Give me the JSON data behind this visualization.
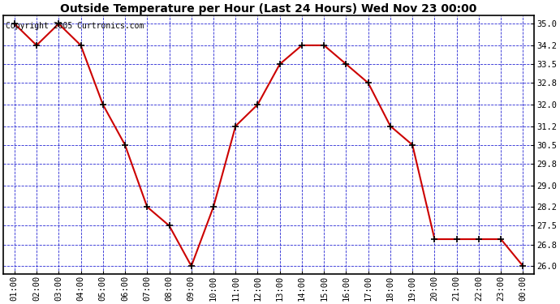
{
  "title": "Outside Temperature per Hour (Last 24 Hours) Wed Nov 23 00:00",
  "copyright": "Copyright 2005 Curtronics.com",
  "x_labels": [
    "01:00",
    "02:00",
    "03:00",
    "04:00",
    "05:00",
    "06:00",
    "07:00",
    "08:00",
    "09:00",
    "10:00",
    "11:00",
    "12:00",
    "13:00",
    "14:00",
    "15:00",
    "16:00",
    "17:00",
    "18:00",
    "19:00",
    "20:00",
    "21:00",
    "22:00",
    "23:00",
    "00:00"
  ],
  "y_values": [
    35.0,
    34.2,
    35.0,
    34.2,
    32.0,
    30.5,
    28.2,
    27.5,
    26.0,
    28.2,
    31.2,
    32.0,
    33.5,
    34.2,
    34.2,
    33.5,
    32.8,
    31.2,
    30.5,
    27.0,
    27.0,
    27.0,
    27.0,
    26.0
  ],
  "y_ticks": [
    26.0,
    26.8,
    27.5,
    28.2,
    29.0,
    29.8,
    30.5,
    31.2,
    32.0,
    32.8,
    33.5,
    34.2,
    35.0
  ],
  "ylim": [
    25.7,
    35.3
  ],
  "line_color": "#cc0000",
  "marker_color": "#000000",
  "plot_bg_color": "#ffffff",
  "fig_bg_color": "#ffffff",
  "grid_color": "#0000cc",
  "title_fontsize": 10,
  "copyright_fontsize": 7,
  "tick_fontsize": 7.5
}
